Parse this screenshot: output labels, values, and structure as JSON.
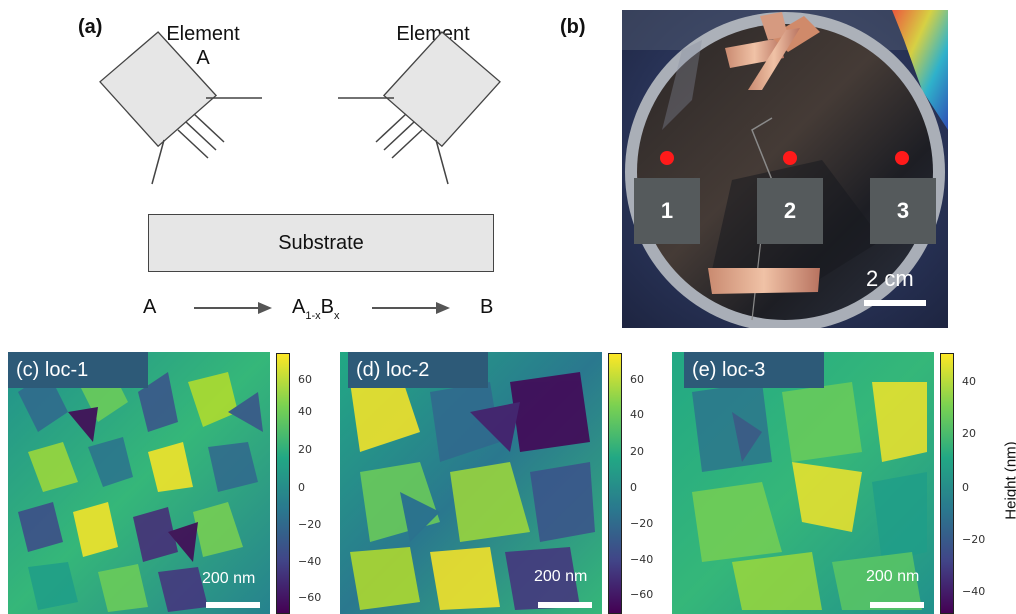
{
  "figure": {
    "panel_a": {
      "label": "(a)",
      "element_a": [
        "Element",
        "A"
      ],
      "element_b": [
        "Element",
        "B"
      ],
      "substrate": "Substrate",
      "gradient": {
        "start": "A",
        "mid_main_1": "A",
        "mid_sub_1": "1-x",
        "mid_main_2": "B",
        "mid_sub_2": "x",
        "end": "B"
      }
    },
    "panel_b": {
      "label": "(b)",
      "markers": [
        "1",
        "2",
        "3"
      ],
      "scale": "2 cm"
    },
    "maps": [
      {
        "label": "(c) loc-1",
        "scale": "200 nm",
        "ticks": [
          "60",
          "40",
          "20",
          "0",
          "−20",
          "−40",
          "−60"
        ],
        "range": [
          -70,
          70
        ]
      },
      {
        "label": "(d) loc-2",
        "scale": "200 nm",
        "ticks": [
          "60",
          "40",
          "20",
          "0",
          "−20",
          "−40",
          "−60"
        ],
        "range": [
          -70,
          70
        ]
      },
      {
        "label": "(e) loc-3",
        "scale": "200 nm",
        "ticks": [
          "40",
          "20",
          "0",
          "−20",
          "−40"
        ],
        "range": [
          -50,
          50
        ]
      }
    ],
    "colorbar_title": "Height (nm)",
    "colors": {
      "viridis_top": "#fde725",
      "viridis_mid": "#21918c",
      "viridis_bottom": "#440154",
      "marker_red": "#ff1a1a",
      "label_box": "#2d5a78"
    }
  }
}
